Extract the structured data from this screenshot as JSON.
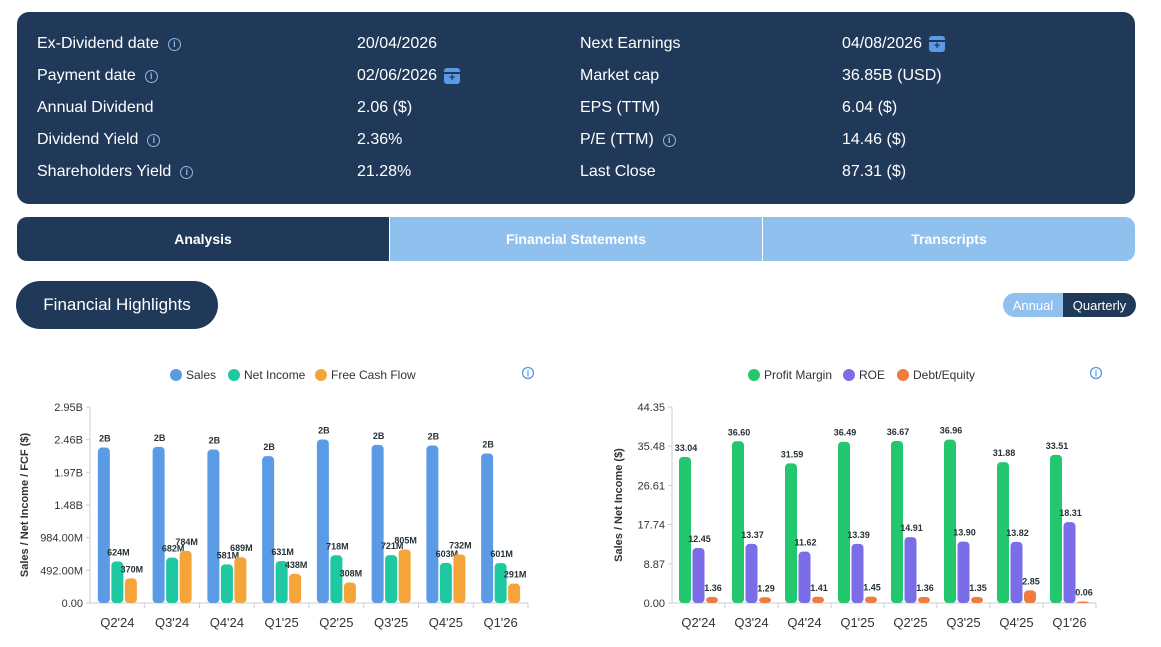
{
  "summary": {
    "left": [
      {
        "label": "Ex-Dividend date",
        "info": true,
        "value": "20/04/2026",
        "calendar": false
      },
      {
        "label": "Payment date",
        "info": true,
        "value": "02/06/2026",
        "calendar": true
      },
      {
        "label": "Annual Dividend",
        "info": false,
        "value": "2.06 ($)",
        "calendar": false
      },
      {
        "label": "Dividend Yield",
        "info": true,
        "value": "2.36%",
        "calendar": false
      },
      {
        "label": "Shareholders Yield",
        "info": true,
        "value": "21.28%",
        "calendar": false
      }
    ],
    "right": [
      {
        "label": "Next Earnings",
        "info": false,
        "value": "04/08/2026",
        "calendar": true
      },
      {
        "label": "Market cap",
        "info": false,
        "value": "36.85B (USD)",
        "calendar": false
      },
      {
        "label": "EPS (TTM)",
        "info": false,
        "value": "6.04 ($)",
        "calendar": false
      },
      {
        "label": "P/E (TTM)",
        "info": true,
        "value": "14.46 ($)",
        "calendar": false
      },
      {
        "label": "Last Close",
        "info": false,
        "value": "87.31 ($)",
        "calendar": false
      }
    ]
  },
  "tabs": [
    {
      "label": "Analysis",
      "active": true
    },
    {
      "label": "Financial Statements",
      "active": false
    },
    {
      "label": "Transcripts",
      "active": false
    }
  ],
  "section_title": "Financial Highlights",
  "toggle": {
    "annual": "Annual",
    "quarterly": "Quarterly",
    "selected": "Quarterly"
  },
  "colors": {
    "navy": "#213959",
    "light_blue": "#8fc0ee"
  },
  "chart_data": [
    {
      "type": "bar",
      "categories": [
        "Q2'24",
        "Q3'24",
        "Q4'24",
        "Q1'25",
        "Q2'25",
        "Q3'25",
        "Q4'25",
        "Q1'26"
      ],
      "ylabel": "Sales / Net Income / FCF ($)",
      "yticks": [
        "0.00",
        "492.00M",
        "984.00M",
        "1.48B",
        "1.97B",
        "2.46B",
        "2.95B"
      ],
      "ylim": [
        0,
        2950000000
      ],
      "legend_position": "top",
      "series": [
        {
          "name": "Sales",
          "color": "#5b9be6",
          "values": [
            2340000000,
            2350000000,
            2310000000,
            2210000000,
            2460000000,
            2380000000,
            2370000000,
            2250000000
          ],
          "labels": [
            "2B",
            "2B",
            "2B",
            "2B",
            "2B",
            "2B",
            "2B",
            "2B"
          ]
        },
        {
          "name": "Net Income",
          "color": "#1ec8a0",
          "values": [
            624000000,
            682000000,
            581000000,
            631000000,
            718000000,
            721000000,
            603000000,
            601000000
          ],
          "labels": [
            "624M",
            "682M",
            "581M",
            "631M",
            "718M",
            "721M",
            "603M",
            "601M"
          ]
        },
        {
          "name": "Free Cash Flow",
          "color": "#f5a43a",
          "values": [
            370000000,
            784000000,
            689000000,
            438000000,
            308000000,
            805000000,
            732000000,
            291000000
          ],
          "labels": [
            "370M",
            "784M",
            "689M",
            "438M",
            "308M",
            "805M",
            "732M",
            "291M"
          ]
        }
      ]
    },
    {
      "type": "bar",
      "categories": [
        "Q2'24",
        "Q3'24",
        "Q4'24",
        "Q1'25",
        "Q2'25",
        "Q3'25",
        "Q4'25",
        "Q1'26"
      ],
      "ylabel": "Sales / Net Income ($)",
      "yticks": [
        "0.00",
        "8.87",
        "17.74",
        "26.61",
        "35.48",
        "44.35"
      ],
      "ylim": [
        0,
        44.35
      ],
      "legend_position": "top",
      "series": [
        {
          "name": "Profit Margin",
          "color": "#22c76e",
          "values": [
            33.04,
            36.6,
            31.59,
            36.49,
            36.67,
            36.96,
            31.88,
            33.51
          ],
          "labels": [
            "33.04",
            "36.60",
            "31.59",
            "36.49",
            "36.67",
            "36.96",
            "31.88",
            "33.51"
          ]
        },
        {
          "name": "ROE",
          "color": "#7b6de8",
          "values": [
            12.45,
            13.37,
            11.62,
            13.39,
            14.91,
            13.9,
            13.82,
            18.31
          ],
          "labels": [
            "12.45",
            "13.37",
            "11.62",
            "13.39",
            "14.91",
            "13.90",
            "13.82",
            "18.31"
          ]
        },
        {
          "name": "Debt/Equity",
          "color": "#f07b3f",
          "values": [
            1.36,
            1.29,
            1.41,
            1.45,
            1.36,
            1.35,
            2.85,
            0.06
          ],
          "labels": [
            "1.36",
            "1.29",
            "1.41",
            "1.45",
            "1.36",
            "1.35",
            "2.85",
            "0.06"
          ]
        }
      ]
    }
  ]
}
